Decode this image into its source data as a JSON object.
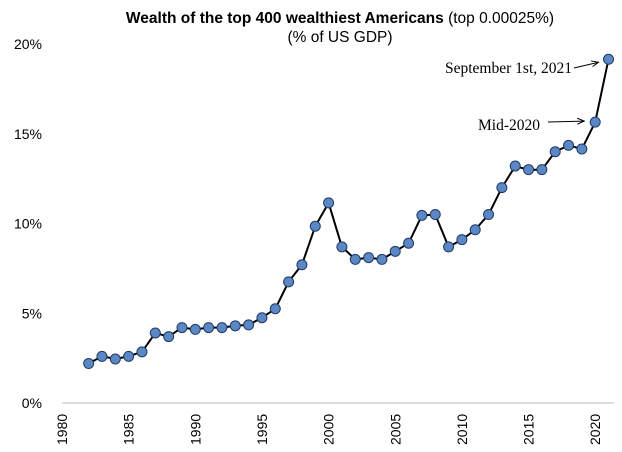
{
  "chart_data": {
    "type": "line",
    "title_bold": "Wealth of the top 400 wealthiest Americans",
    "title_rest": " (top 0.00025%)",
    "subtitle": "(% of US GDP)",
    "xlabel": "",
    "ylabel": "",
    "xlim": [
      1980,
      2021
    ],
    "ylim": [
      0,
      20
    ],
    "x_ticks": [
      1980,
      1985,
      1990,
      1995,
      2000,
      2005,
      2010,
      2015,
      2020
    ],
    "y_ticks": [
      0,
      5,
      10,
      15,
      20
    ],
    "y_tick_labels": [
      "0%",
      "5%",
      "10%",
      "15%",
      "20%"
    ],
    "grid": false,
    "legend": "none",
    "line_color": "#000000",
    "marker_color": "#5b87c5",
    "x": [
      1982,
      1983,
      1984,
      1985,
      1986,
      1987,
      1988,
      1989,
      1990,
      1991,
      1992,
      1993,
      1994,
      1995,
      1996,
      1997,
      1998,
      1999,
      2000,
      2001,
      2002,
      2003,
      2004,
      2005,
      2006,
      2007,
      2008,
      2009,
      2010,
      2011,
      2012,
      2013,
      2014,
      2015,
      2016,
      2017,
      2018,
      2019,
      2020,
      2021
    ],
    "values": [
      2.2,
      2.6,
      2.45,
      2.6,
      2.85,
      3.9,
      3.7,
      4.2,
      4.1,
      4.2,
      4.2,
      4.3,
      4.35,
      4.75,
      5.25,
      6.75,
      7.7,
      9.85,
      11.15,
      8.7,
      8.0,
      8.1,
      8.0,
      8.45,
      8.9,
      10.45,
      10.5,
      8.7,
      9.1,
      9.65,
      10.5,
      12.0,
      13.2,
      13.0,
      13.0,
      14.0,
      14.35,
      14.15,
      15.65,
      19.15
    ],
    "annotations": [
      {
        "text": "September 1st, 2021",
        "x": 2021,
        "y": 19.15
      },
      {
        "text": "Mid-2020",
        "x": 2020,
        "y": 15.65
      }
    ]
  }
}
